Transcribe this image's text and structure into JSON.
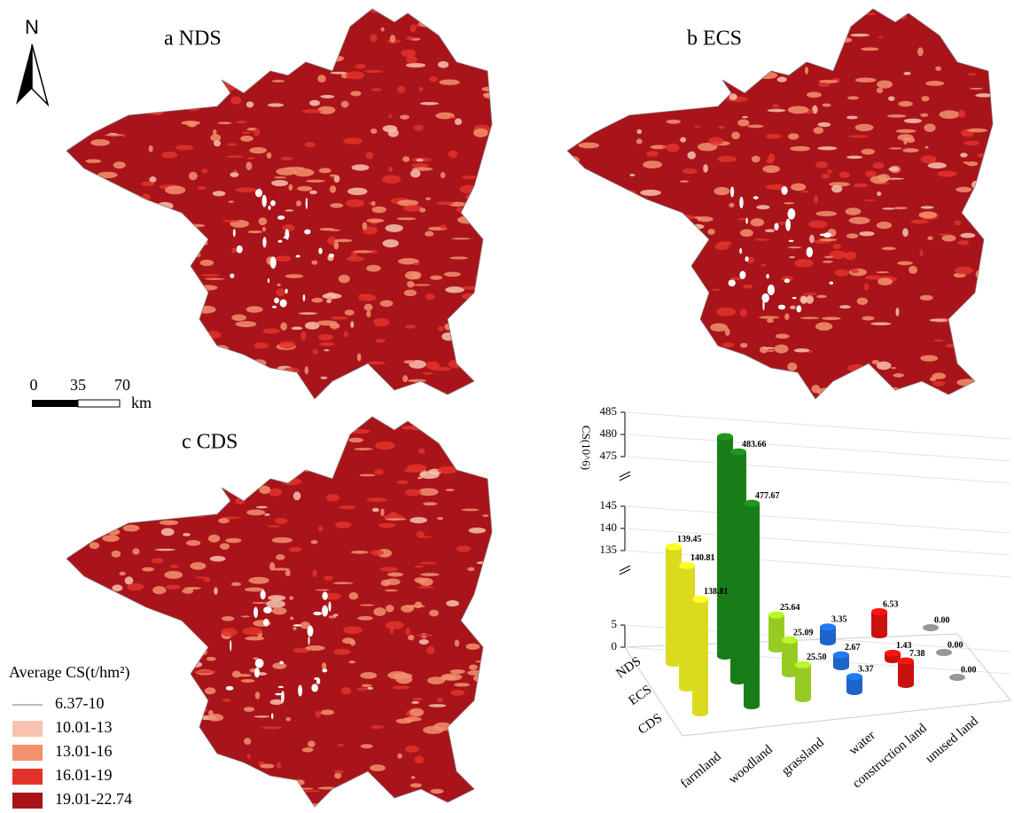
{
  "maps": [
    {
      "label": "a NDS"
    },
    {
      "label": "b ECS"
    },
    {
      "label": "c CDS"
    }
  ],
  "north": "N",
  "scale_bar": {
    "ticks": [
      0,
      35,
      70
    ],
    "unit": "km"
  },
  "legend": {
    "title": "Average CS(t/hm²)",
    "items": [
      {
        "label": "6.37-10",
        "color": "#ffffff"
      },
      {
        "label": "10.01-13",
        "color": "#f8c2b0"
      },
      {
        "label": "13.01-16",
        "color": "#f3906e"
      },
      {
        "label": "16.01-19",
        "color": "#e2332b"
      },
      {
        "label": "19.01-22.74",
        "color": "#a8141a"
      }
    ]
  },
  "chart_data": {
    "type": "bar3d",
    "y_label": "CS(10^6)",
    "categories": [
      "farmland",
      "woodland",
      "grassland",
      "water",
      "construction land",
      "unused land"
    ],
    "colors": [
      "#f2f222",
      "#1b8a1b",
      "#a9e225",
      "#1f6fe0",
      "#e21212",
      "#8a8a8a"
    ],
    "series": [
      {
        "name": "NDS",
        "values": [
          139.45,
          481.5,
          25.64,
          3.35,
          6.53,
          0
        ],
        "value_labels": [
          "139.45",
          null,
          "25.64",
          "3.35",
          "6.53",
          "0.00"
        ]
      },
      {
        "name": "ECS",
        "values": [
          140.81,
          483.66,
          25.09,
          2.67,
          1.43,
          0
        ],
        "value_labels": [
          "140.81",
          "483.66",
          "25.09",
          "2.67",
          "1.43",
          "0.00"
        ]
      },
      {
        "name": "CDS",
        "values": [
          138.81,
          477.67,
          25.5,
          3.37,
          7.38,
          0
        ],
        "value_labels": [
          "138.81",
          "477.67",
          "25.50",
          "3.37",
          "7.38",
          "0.00"
        ]
      }
    ],
    "ylim": [
      0,
      485
    ],
    "yticks": [
      0,
      5,
      135,
      140,
      145,
      475,
      480,
      485
    ]
  }
}
